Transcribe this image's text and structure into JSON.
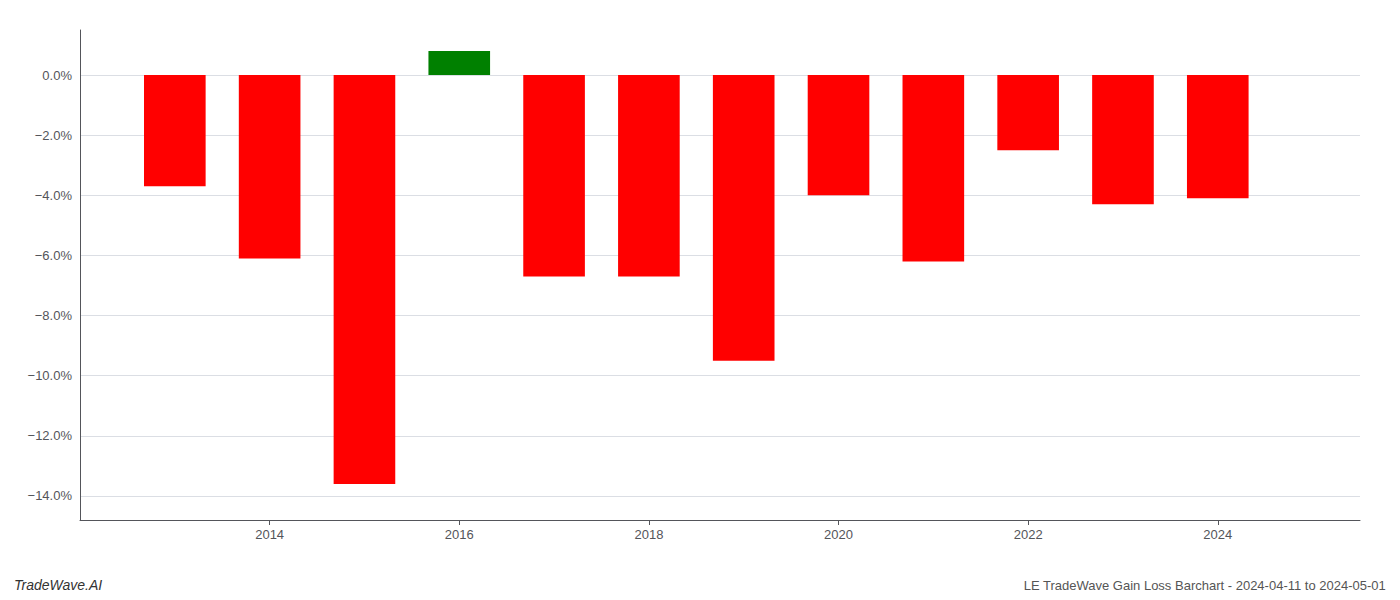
{
  "chart_data": {
    "type": "bar",
    "x": [
      2013,
      2014,
      2015,
      2016,
      2017,
      2018,
      2019,
      2020,
      2021,
      2022,
      2023,
      2024
    ],
    "values": [
      -3.7,
      -6.1,
      -13.6,
      0.8,
      -6.7,
      -6.7,
      -9.5,
      -4.0,
      -6.2,
      -2.5,
      -4.3,
      -4.1
    ],
    "colors": [
      "#ff0000",
      "#ff0000",
      "#ff0000",
      "#008000",
      "#ff0000",
      "#ff0000",
      "#ff0000",
      "#ff0000",
      "#ff0000",
      "#ff0000",
      "#ff0000",
      "#ff0000"
    ],
    "xlim": [
      2012.0,
      2025.5
    ],
    "xticks": [
      2014,
      2016,
      2018,
      2020,
      2022,
      2024
    ],
    "ylim": [
      -14.8,
      1.5
    ],
    "yticks": [
      {
        "value": 0.0,
        "label": "0.0%"
      },
      {
        "value": -2.0,
        "label": "−2.0%"
      },
      {
        "value": -4.0,
        "label": "−4.0%"
      },
      {
        "value": -6.0,
        "label": "−6.0%"
      },
      {
        "value": -8.0,
        "label": "−8.0%"
      },
      {
        "value": -10.0,
        "label": "−10.0%"
      },
      {
        "value": -12.0,
        "label": "−12.0%"
      },
      {
        "value": -14.0,
        "label": "−14.0%"
      }
    ],
    "grid": true,
    "annotations": [
      "TradeWave.AI",
      "LE TradeWave Gain Loss Barchart - 2024-04-11 to 2024-05-01"
    ]
  }
}
